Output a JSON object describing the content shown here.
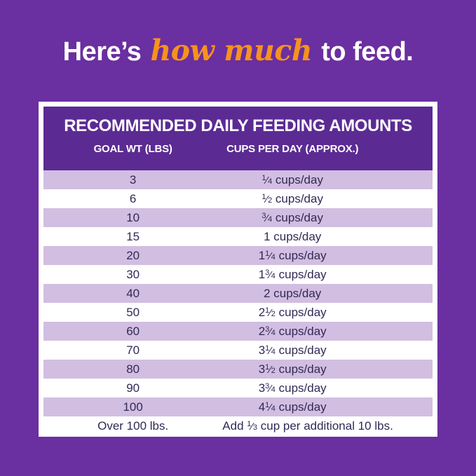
{
  "colors": {
    "page_bg": "#6a2fa0",
    "header_bg": "#5b2b93",
    "stripe": "#d2bee1",
    "text_dark": "#312a56",
    "accent_orange": "#f6921e"
  },
  "heading": {
    "prefix": "Here’s ",
    "highlight": "how much",
    "suffix": " to feed."
  },
  "table": {
    "title": "RECOMMENDED DAILY FEEDING AMOUNTS",
    "columns": [
      "GOAL WT (LBS)",
      "CUPS PER DAY (APPROX.)"
    ],
    "rows": [
      {
        "goal_wt": "3",
        "cups": "¼ cups/day"
      },
      {
        "goal_wt": "6",
        "cups": "½ cups/day"
      },
      {
        "goal_wt": "10",
        "cups": "¾ cups/day"
      },
      {
        "goal_wt": "15",
        "cups": "1 cups/day"
      },
      {
        "goal_wt": "20",
        "cups": "1¼ cups/day"
      },
      {
        "goal_wt": "30",
        "cups": "1¾ cups/day"
      },
      {
        "goal_wt": "40",
        "cups": "2 cups/day"
      },
      {
        "goal_wt": "50",
        "cups": "2½ cups/day"
      },
      {
        "goal_wt": "60",
        "cups": "2¾ cups/day"
      },
      {
        "goal_wt": "70",
        "cups": "3¼ cups/day"
      },
      {
        "goal_wt": "80",
        "cups": "3½ cups/day"
      },
      {
        "goal_wt": "90",
        "cups": "3¾ cups/day"
      },
      {
        "goal_wt": "100",
        "cups": "4¼ cups/day"
      },
      {
        "goal_wt": "Over 100 lbs.",
        "cups": "Add ⅓ cup per additional 10 lbs."
      }
    ]
  },
  "chart_data": {
    "type": "table",
    "title": "RECOMMENDED DAILY FEEDING AMOUNTS",
    "columns": [
      "GOAL WT (LBS)",
      "CUPS PER DAY (APPROX.)"
    ],
    "goal_wt_lbs": [
      3,
      6,
      10,
      15,
      20,
      30,
      40,
      50,
      60,
      70,
      80,
      90,
      100
    ],
    "cups_per_day": [
      0.25,
      0.5,
      0.75,
      1,
      1.25,
      1.75,
      2,
      2.5,
      2.75,
      3.25,
      3.5,
      3.75,
      4.25
    ],
    "note": "Over 100 lbs.: Add ⅓ cup per additional 10 lbs."
  }
}
